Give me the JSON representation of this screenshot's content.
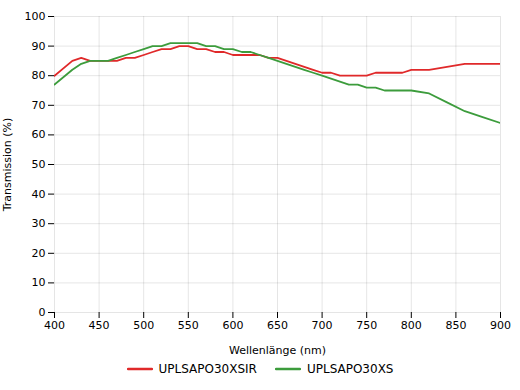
{
  "chart_data": {
    "type": "line",
    "xlabel": "Wellenlänge (nm)",
    "ylabel": "Transmission (%)",
    "x": [
      400,
      420,
      430,
      440,
      450,
      460,
      470,
      480,
      490,
      500,
      510,
      520,
      530,
      540,
      550,
      560,
      570,
      580,
      590,
      600,
      610,
      620,
      630,
      640,
      650,
      660,
      670,
      680,
      690,
      700,
      710,
      720,
      730,
      740,
      750,
      760,
      770,
      780,
      790,
      800,
      820,
      840,
      860,
      880,
      900
    ],
    "series": [
      {
        "name": "UPLSAPO30XSIR",
        "color": "#e0292a",
        "values": [
          80,
          85,
          86,
          85,
          85,
          85,
          85,
          86,
          86,
          87,
          88,
          89,
          89,
          90,
          90,
          89,
          89,
          88,
          88,
          87,
          87,
          87,
          87,
          86,
          86,
          85,
          84,
          83,
          82,
          81,
          81,
          80,
          80,
          80,
          80,
          81,
          81,
          81,
          81,
          82,
          82,
          83,
          84,
          84,
          84
        ]
      },
      {
        "name": "UPLSAPO30XS",
        "color": "#3c9c3c",
        "values": [
          77,
          82,
          84,
          85,
          85,
          85,
          86,
          87,
          88,
          89,
          90,
          90,
          91,
          91,
          91,
          91,
          90,
          90,
          89,
          89,
          88,
          88,
          87,
          86,
          85,
          84,
          83,
          82,
          81,
          80,
          79,
          78,
          77,
          77,
          76,
          76,
          75,
          75,
          75,
          75,
          74,
          71,
          68,
          66,
          64
        ]
      }
    ],
    "xlim": [
      400,
      900
    ],
    "ylim": [
      0,
      100
    ],
    "xticks": [
      400,
      450,
      500,
      550,
      600,
      650,
      700,
      750,
      800,
      850,
      900
    ],
    "yticks": [
      0,
      10,
      20,
      30,
      40,
      50,
      60,
      70,
      80,
      90,
      100
    ],
    "grid": true,
    "legend": "bottom"
  }
}
